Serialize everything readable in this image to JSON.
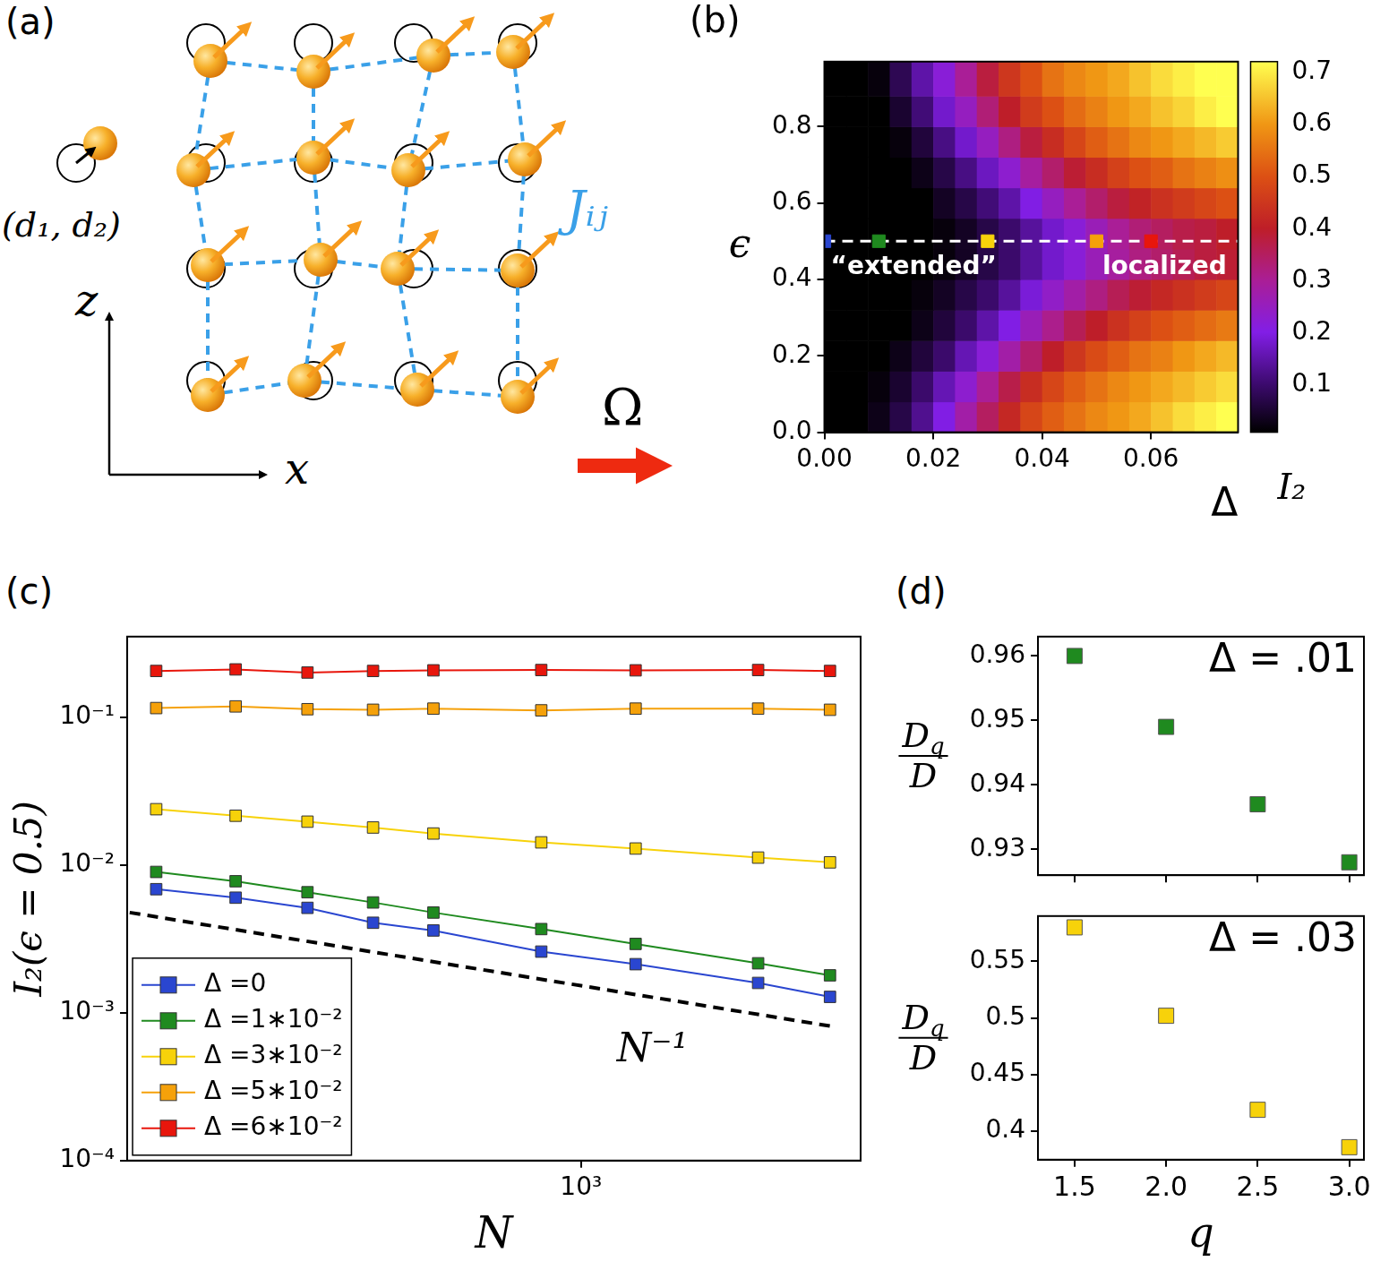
{
  "diagram": {
    "panel_label": "(a)",
    "displacement_label": "(d₁, d₂)",
    "coupling_label": "Jᵢⱼ",
    "vertical_axis_label": "z",
    "horizontal_axis_label": "x",
    "drive_label": "Ω"
  },
  "chart_data": [
    {
      "panel_label": "(b)",
      "type": "heatmap",
      "x_label": "Δ",
      "y_label": "ϵ",
      "xlim": [
        0,
        0.076
      ],
      "ylim": [
        0,
        0.97
      ],
      "xticks": [
        {
          "value": 0,
          "label": "0.00"
        },
        {
          "value": 0.02,
          "label": "0.02"
        },
        {
          "value": 0.04,
          "label": "0.04"
        },
        {
          "value": 0.06,
          "label": "0.06"
        }
      ],
      "yticks": [
        {
          "value": 0,
          "label": "0.0"
        },
        0.2,
        0.4,
        0.6,
        0.8
      ],
      "x_edges": [
        0,
        0.004,
        0.008,
        0.012,
        0.016,
        0.02,
        0.024,
        0.028,
        0.032,
        0.036,
        0.04,
        0.044,
        0.048,
        0.052,
        0.056,
        0.06,
        0.064,
        0.068,
        0.072,
        0.076
      ],
      "y_edges": [
        0,
        0.08,
        0.16,
        0.24,
        0.32,
        0.4,
        0.48,
        0.56,
        0.64,
        0.72,
        0.8,
        0.88,
        0.97
      ],
      "cells": [
        [
          0,
          0.01,
          0.03,
          0.07,
          0.13,
          0.2,
          0.28,
          0.35,
          0.42,
          0.48,
          0.52,
          0.55,
          0.58,
          0.6,
          0.62,
          0.65,
          0.68,
          0.7,
          0.72
        ],
        [
          0,
          0,
          0.02,
          0.05,
          0.1,
          0.16,
          0.23,
          0.3,
          0.37,
          0.43,
          0.48,
          0.52,
          0.55,
          0.58,
          0.6,
          0.62,
          0.64,
          0.66,
          0.68
        ],
        [
          0,
          0,
          0.01,
          0.03,
          0.06,
          0.1,
          0.16,
          0.22,
          0.28,
          0.34,
          0.4,
          0.45,
          0.49,
          0.52,
          0.55,
          0.57,
          0.6,
          0.62,
          0.64
        ],
        [
          0,
          0,
          0,
          0.01,
          0.03,
          0.06,
          0.1,
          0.15,
          0.2,
          0.26,
          0.31,
          0.36,
          0.4,
          0.44,
          0.47,
          0.5,
          0.52,
          0.54,
          0.56
        ],
        [
          0,
          0,
          0,
          0.01,
          0.02,
          0.04,
          0.07,
          0.1,
          0.14,
          0.19,
          0.24,
          0.28,
          0.32,
          0.36,
          0.39,
          0.42,
          0.44,
          0.46,
          0.48
        ],
        [
          0,
          0,
          0,
          0,
          0.01,
          0.02,
          0.04,
          0.07,
          0.1,
          0.14,
          0.18,
          0.22,
          0.26,
          0.29,
          0.32,
          0.34,
          0.36,
          0.38,
          0.39
        ],
        [
          0,
          0,
          0,
          0,
          0.01,
          0.02,
          0.04,
          0.07,
          0.1,
          0.14,
          0.18,
          0.22,
          0.26,
          0.3,
          0.33,
          0.35,
          0.37,
          0.38,
          0.4
        ],
        [
          0,
          0,
          0,
          0,
          0.01,
          0.04,
          0.07,
          0.11,
          0.15,
          0.2,
          0.25,
          0.3,
          0.34,
          0.38,
          0.41,
          0.44,
          0.46,
          0.48,
          0.5
        ],
        [
          0,
          0,
          0,
          0.01,
          0.03,
          0.07,
          0.12,
          0.17,
          0.23,
          0.29,
          0.34,
          0.39,
          0.43,
          0.47,
          0.5,
          0.52,
          0.55,
          0.57,
          0.59
        ],
        [
          0,
          0,
          0,
          0.02,
          0.06,
          0.12,
          0.18,
          0.25,
          0.32,
          0.38,
          0.43,
          0.48,
          0.52,
          0.55,
          0.58,
          0.6,
          0.62,
          0.64,
          0.66
        ],
        [
          0,
          0,
          0.01,
          0.05,
          0.11,
          0.18,
          0.25,
          0.33,
          0.4,
          0.46,
          0.5,
          0.54,
          0.57,
          0.6,
          0.62,
          0.65,
          0.67,
          0.7,
          0.72
        ],
        [
          0,
          0,
          0.02,
          0.08,
          0.15,
          0.22,
          0.3,
          0.38,
          0.45,
          0.5,
          0.55,
          0.58,
          0.6,
          0.62,
          0.65,
          0.68,
          0.7,
          0.72,
          0.75
        ]
      ],
      "colorbar": {
        "label": "I₂",
        "range": [
          0.01,
          0.72
        ],
        "ticks": [
          0.1,
          0.2,
          0.3,
          0.4,
          0.5,
          0.6,
          0.7
        ]
      },
      "reference_line": {
        "y": 0.5,
        "line_style": "dashed",
        "color": "#ffffff"
      },
      "markers": {
        "x": [
          0,
          0.01,
          0.03,
          0.05,
          0.06
        ],
        "y": 0.5,
        "colors": [
          "#2a46d0",
          "#1f8a1f",
          "#f7d20a",
          "#f5a10a",
          "#e8160c"
        ],
        "marker": "square"
      },
      "annotations": [
        {
          "text": "“extended”",
          "x": 0.0164,
          "y": 0.43
        },
        {
          "text": "localized",
          "x": 0.0625,
          "y": 0.43
        }
      ]
    },
    {
      "panel_label": "(c)",
      "type": "line",
      "log": true,
      "x_label": "N",
      "y_label": "I₂(ϵ = 0.5)",
      "xlim": [
        300,
        2100
      ],
      "ylim": [
        0.0001,
        0.35
      ],
      "xticks": [
        {
          "value": 1000,
          "label": "10³"
        }
      ],
      "yticks": [
        {
          "value": 0.0001,
          "label": "10⁻⁴"
        },
        {
          "value": 0.001,
          "label": "10⁻³"
        },
        {
          "value": 0.01,
          "label": "10⁻²"
        },
        {
          "value": 0.1,
          "label": "10⁻¹"
        }
      ],
      "x": [
        324,
        400,
        484,
        576,
        676,
        900,
        1156,
        1600,
        1936
      ],
      "marker": "square",
      "legend": "lower left",
      "series": [
        {
          "name": "Δ =0",
          "color": "#2a46d0",
          "values": [
            0.00685,
            0.006,
            0.00512,
            0.00406,
            0.0036,
            0.00259,
            0.00213,
            0.00159,
            0.00128
          ]
        },
        {
          "name": "Δ =1∗10⁻²",
          "color": "#1f8a1f",
          "values": [
            0.00896,
            0.00775,
            0.00653,
            0.00557,
            0.00476,
            0.00368,
            0.00292,
            0.00216,
            0.00179
          ]
        },
        {
          "name": "Δ =3∗10⁻²",
          "color": "#f7d20a",
          "values": [
            0.0238,
            0.0215,
            0.0196,
            0.0179,
            0.0163,
            0.0142,
            0.0129,
            0.0112,
            0.0104
          ]
        },
        {
          "name": "Δ =5∗10⁻²",
          "color": "#f5a10a",
          "values": [
            0.115,
            0.118,
            0.113,
            0.112,
            0.114,
            0.111,
            0.114,
            0.114,
            0.112
          ]
        },
        {
          "name": "Δ =6∗10⁻²",
          "color": "#e8160c",
          "values": [
            0.205,
            0.21,
            0.2,
            0.205,
            0.207,
            0.208,
            0.207,
            0.208,
            0.205
          ]
        }
      ],
      "reference_line": {
        "x": [
          302,
          1960
        ],
        "values": [
          0.00476,
          0.000803
        ],
        "line_style": "dashed",
        "color": "#000000",
        "label": "N⁻¹",
        "label_x": 1100,
        "label_y": 0.00075
      }
    },
    {
      "panel_label": "(d)",
      "type": "scatter",
      "annotation": "Δ = .01",
      "y_label": {
        "numerator": "D",
        "subscript": "q",
        "denominator": "D"
      },
      "x": [
        1.5,
        2,
        2.5,
        3
      ],
      "values": [
        0.96,
        0.949,
        0.937,
        0.928
      ],
      "color": "#1f8a1f",
      "marker": "square",
      "xlim": [
        1.3,
        3.08
      ],
      "ylim": [
        0.926,
        0.963
      ],
      "xticks": [
        1.5,
        {
          "value": 2,
          "label": "2.0"
        },
        2.5,
        {
          "value": 3,
          "label": "3.0"
        }
      ],
      "yticks": [
        0.93,
        0.94,
        0.95,
        0.96
      ],
      "tick_labels": "y"
    },
    {
      "type": "scatter",
      "annotation": "Δ = .03",
      "x_label": "q",
      "y_label": {
        "numerator": "D",
        "subscript": "q",
        "denominator": "D"
      },
      "x": [
        1.5,
        2,
        2.5,
        3
      ],
      "values": [
        0.58,
        0.502,
        0.419,
        0.386
      ],
      "color": "#f7d20a",
      "marker": "square",
      "xlim": [
        1.3,
        3.08
      ],
      "ylim": [
        0.375,
        0.59
      ],
      "xticks": [
        1.5,
        {
          "value": 2,
          "label": "2.0"
        },
        2.5,
        {
          "value": 3,
          "label": "3.0"
        }
      ],
      "yticks": [
        0.4,
        0.45,
        0.5,
        0.55
      ]
    }
  ]
}
